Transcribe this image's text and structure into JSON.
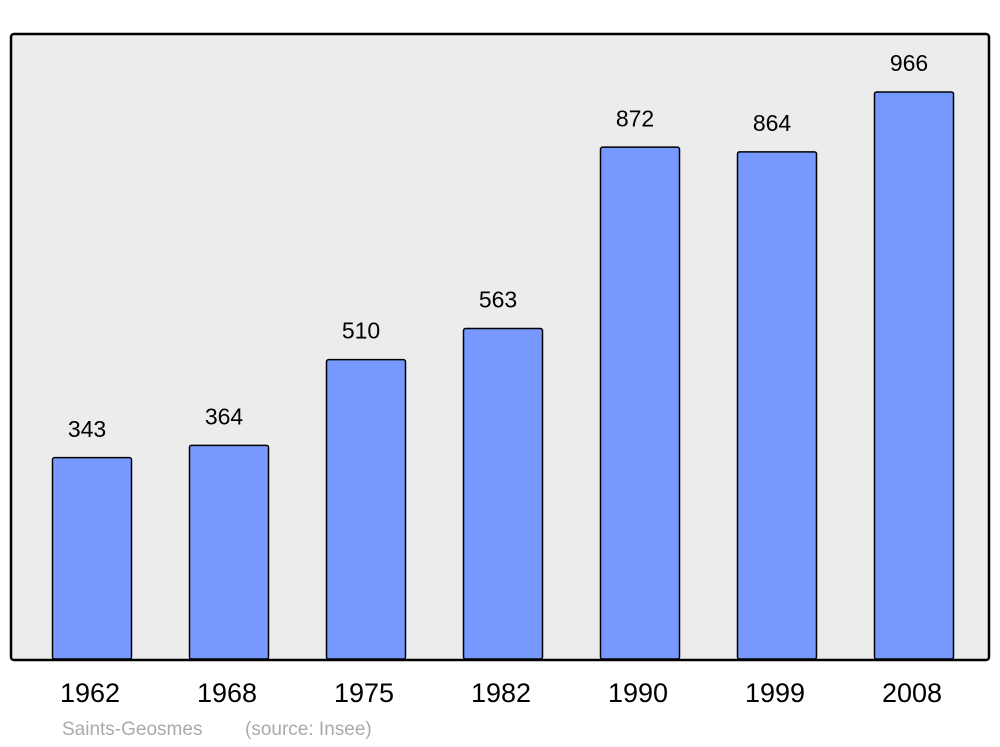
{
  "chart_data": {
    "type": "bar",
    "title": "Saints-Geosmes",
    "source": "(source: Insee)",
    "categories": [
      "1962",
      "1968",
      "1975",
      "1982",
      "1990",
      "1999",
      "2008"
    ],
    "values": [
      343,
      364,
      510,
      563,
      872,
      864,
      966
    ],
    "color": "#7799ff"
  }
}
